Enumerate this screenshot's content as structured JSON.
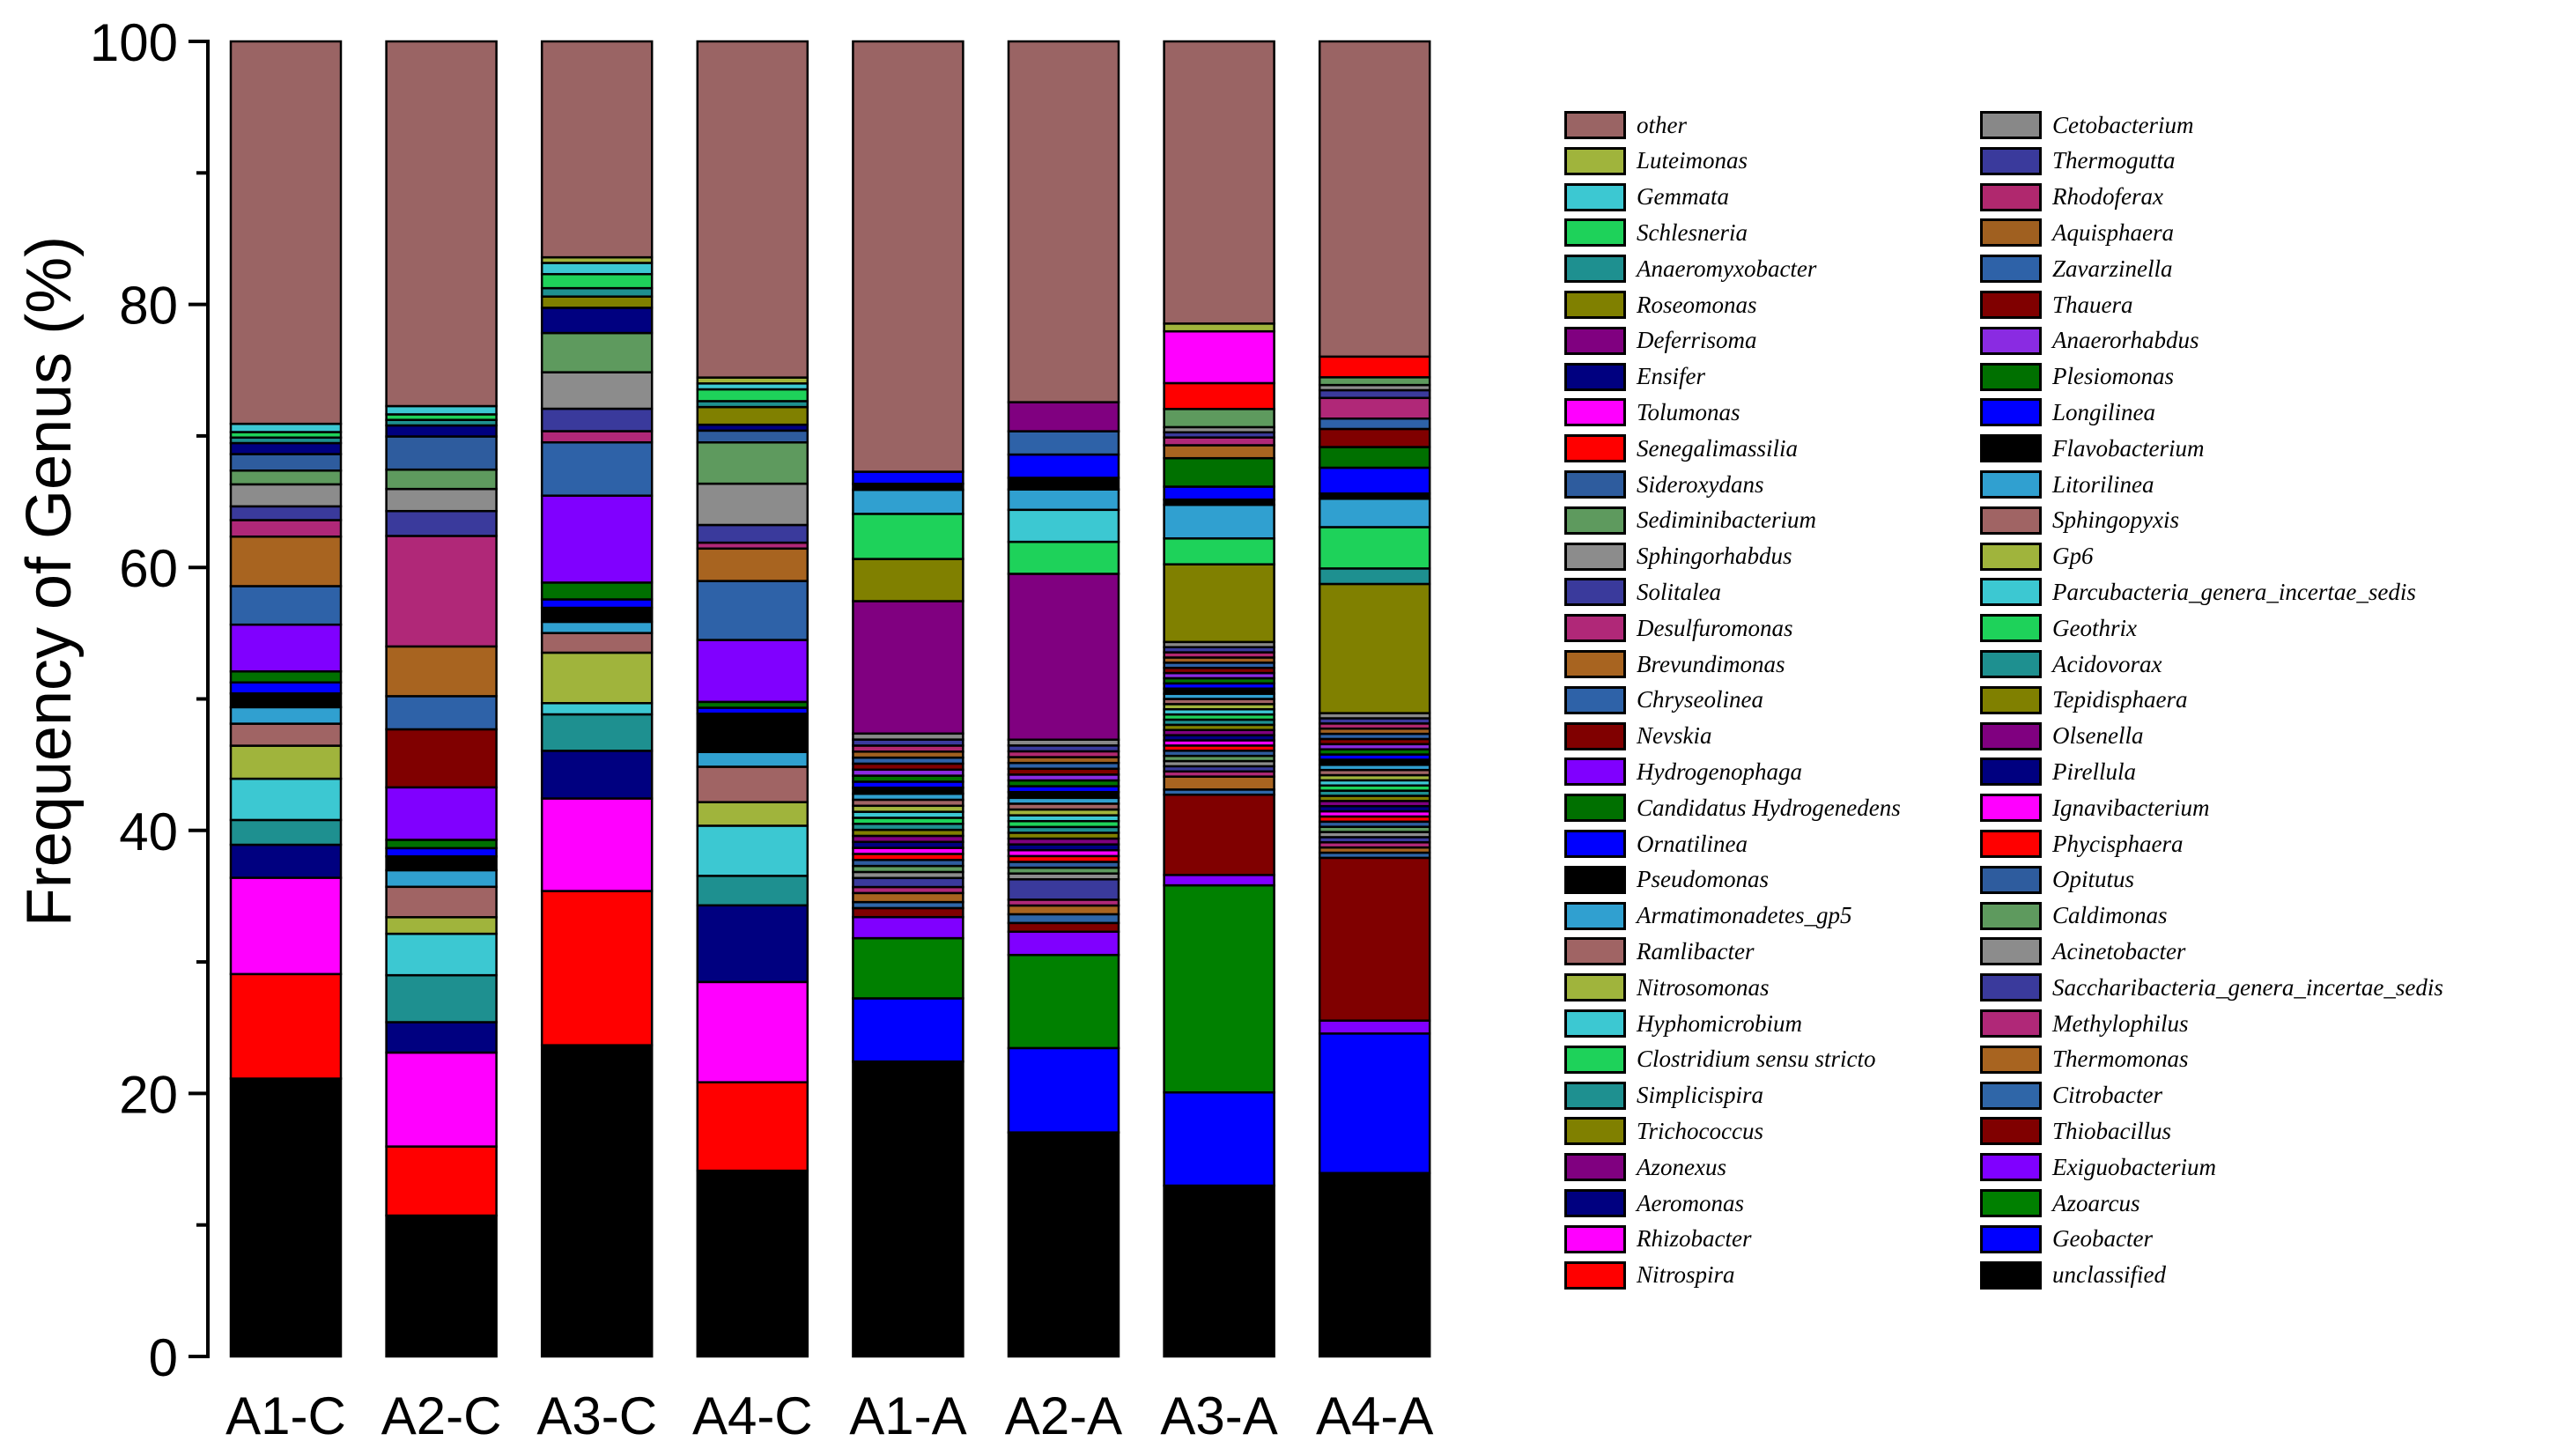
{
  "chart_data": {
    "type": "stacked-bar",
    "ylabel": "Frequency of Genus (%)",
    "ylim": [
      0,
      100
    ],
    "yticks": [
      0,
      20,
      40,
      60,
      80,
      100
    ],
    "categories": [
      "A1-C",
      "A2-C",
      "A3-C",
      "A4-C",
      "A1-A",
      "A2-A",
      "A3-A",
      "A4-A"
    ],
    "legend_placement": "right",
    "series": [
      {
        "name": "unclassified",
        "color": "#000000",
        "values": [
          20.2,
          10.2,
          22.2,
          12.6,
          19.6,
          15.4,
          13.2,
          14.2
        ]
      },
      {
        "name": "Geobacter",
        "color": "#0000ff",
        "values": [
          0,
          0,
          0,
          0,
          4.2,
          5.8,
          7.2,
          10.8
        ]
      },
      {
        "name": "Azoarcus",
        "color": "#008000",
        "values": [
          0,
          0,
          0,
          0,
          4.0,
          6.4,
          16.0,
          0
        ]
      },
      {
        "name": "Exiguobacterium",
        "color": "#8000ff",
        "values": [
          0,
          0,
          0,
          0,
          1.4,
          1.6,
          0.8,
          1.0
        ]
      },
      {
        "name": "Thiobacillus",
        "color": "#800000",
        "values": [
          0,
          0,
          0,
          0,
          0.6,
          0.6,
          6.2,
          12.6
        ]
      },
      {
        "name": "Citrobacter",
        "color": "#2f66a8",
        "values": [
          0,
          0,
          0,
          0,
          0.4,
          0.6,
          0.4,
          0.4
        ]
      },
      {
        "name": "Thermomonas",
        "color": "#a86420",
        "values": [
          0,
          0,
          0,
          0,
          0.6,
          0.6,
          1.0,
          0.4
        ]
      },
      {
        "name": "Methylophilus",
        "color": "#b02878",
        "values": [
          0,
          0,
          0,
          0,
          0.4,
          0.4,
          0.4,
          0.4
        ]
      },
      {
        "name": "Saccharibacteria_genera_incertae_sedis",
        "color": "#3a3a9c",
        "values": [
          0,
          0,
          0,
          0,
          0.6,
          1.4,
          0.4,
          0.4
        ]
      },
      {
        "name": "Acinetobacter",
        "color": "#8c8c8c",
        "values": [
          0,
          0,
          0,
          0,
          0.4,
          0.4,
          0.4,
          0.4
        ]
      },
      {
        "name": "Caldimonas",
        "color": "#5e9a5e",
        "values": [
          0,
          0,
          0,
          0,
          0.4,
          0.4,
          0.4,
          0.4
        ]
      },
      {
        "name": "Opitutus",
        "color": "#2e5c9e",
        "values": [
          0,
          0,
          0,
          0,
          0.4,
          0.4,
          0.4,
          0.4
        ]
      },
      {
        "name": "Phycisphaera",
        "color": "#ff0000",
        "values": [
          0,
          0,
          0,
          0,
          0.4,
          0.4,
          0.4,
          0.4
        ]
      },
      {
        "name": "Ignavibacterium",
        "color": "#ff00ff",
        "values": [
          0,
          0,
          0,
          0,
          0.4,
          0.4,
          0.4,
          0.4
        ]
      },
      {
        "name": "Pirellula",
        "color": "#000080",
        "values": [
          0,
          0,
          0,
          0,
          0.4,
          0.4,
          0.4,
          0.4
        ]
      },
      {
        "name": "Olsenella",
        "color": "#800080",
        "values": [
          0,
          0,
          0,
          0,
          0.4,
          0.4,
          0.4,
          0.4
        ]
      },
      {
        "name": "Tepidisphaera",
        "color": "#808000",
        "values": [
          0,
          0,
          0,
          0,
          0.4,
          0.4,
          0.4,
          0.4
        ]
      },
      {
        "name": "Acidovorax",
        "color": "#1e9090",
        "values": [
          0,
          0,
          0,
          0,
          0.4,
          0.4,
          0.4,
          0.4
        ]
      },
      {
        "name": "Geothrix",
        "color": "#1ed25a",
        "values": [
          0,
          0,
          0,
          0,
          0.4,
          0.4,
          0.4,
          0.4
        ]
      },
      {
        "name": "Parcubacteria_genera_incertae_sedis",
        "color": "#3cc8d2",
        "values": [
          0,
          0,
          0,
          0,
          0.4,
          0.4,
          0.4,
          0.4
        ]
      },
      {
        "name": "Gp6",
        "color": "#a0b43c",
        "values": [
          0,
          0,
          0,
          0,
          0.4,
          0.4,
          0.4,
          0.4
        ]
      },
      {
        "name": "Sphingopyxis",
        "color": "#a06464",
        "values": [
          0,
          0,
          0,
          0,
          0.4,
          0.4,
          0.4,
          0.4
        ]
      },
      {
        "name": "Litorilinea",
        "color": "#30a0d0",
        "values": [
          0,
          0,
          0,
          0,
          0.4,
          0.4,
          0.4,
          0.4
        ]
      },
      {
        "name": "Flavobacterium",
        "color": "#000000",
        "values": [
          0,
          0,
          0,
          0,
          0.4,
          0.4,
          0.4,
          0.4
        ]
      },
      {
        "name": "Longilinea",
        "color": "#0000ff",
        "values": [
          0,
          0,
          0,
          0,
          0.4,
          0.4,
          0.4,
          0.4
        ]
      },
      {
        "name": "Plesiomonas",
        "color": "#007000",
        "values": [
          0,
          0,
          0,
          0,
          0.4,
          0.4,
          0.4,
          0.4
        ]
      },
      {
        "name": "Anaerorhabdus",
        "color": "#8a2be2",
        "values": [
          0,
          0,
          0,
          0,
          0.4,
          0.4,
          0.4,
          0.4
        ]
      },
      {
        "name": "Thauera",
        "color": "#800000",
        "values": [
          0,
          0,
          0,
          0,
          0.4,
          0.4,
          0.4,
          0.4
        ]
      },
      {
        "name": "Zavarzinella",
        "color": "#2e62a8",
        "values": [
          0,
          0,
          0,
          0,
          0.4,
          0.4,
          0.4,
          0.4
        ]
      },
      {
        "name": "Aquisphaera",
        "color": "#a06020",
        "values": [
          0,
          0,
          0,
          0,
          0.4,
          0.4,
          0.4,
          0.4
        ]
      },
      {
        "name": "Rhodoferax",
        "color": "#b0286e",
        "values": [
          0,
          0,
          0,
          0,
          0.4,
          0.4,
          0.4,
          0.4
        ]
      },
      {
        "name": "Thermogutta",
        "color": "#3a3a9c",
        "values": [
          0,
          0,
          0,
          0,
          0.4,
          0.4,
          0.4,
          0.4
        ]
      },
      {
        "name": "Cetobacterium",
        "color": "#888888",
        "values": [
          0,
          0,
          0,
          0,
          0.4,
          0.4,
          0.4,
          0.4
        ]
      },
      {
        "name": "Nitrospira",
        "color": "#ff0000",
        "values": [
          7.6,
          5.0,
          11.0,
          6.0,
          0,
          0,
          0,
          0
        ]
      },
      {
        "name": "Rhizobacter",
        "color": "#ff00ff",
        "values": [
          7.0,
          6.8,
          6.6,
          6.8,
          0,
          0,
          0,
          0
        ]
      },
      {
        "name": "Aeromonas",
        "color": "#000080",
        "values": [
          2.4,
          2.2,
          3.4,
          5.2,
          0,
          0,
          0,
          0
        ]
      },
      {
        "name": "Azonexus",
        "color": "#800080",
        "values": [
          0,
          0,
          0,
          0,
          8.8,
          11.4,
          0,
          0
        ]
      },
      {
        "name": "Trichococcus",
        "color": "#808000",
        "values": [
          0,
          0,
          0,
          0,
          2.8,
          0,
          6.0,
          10.0
        ]
      },
      {
        "name": "Simplicispira",
        "color": "#1e9090",
        "values": [
          1.8,
          3.4,
          2.6,
          2.0,
          0,
          0,
          0,
          1.2
        ]
      },
      {
        "name": "Clostridium sensu stricto",
        "color": "#1ed25a",
        "values": [
          0,
          0,
          0,
          0,
          3.0,
          2.2,
          2.0,
          3.2
        ]
      },
      {
        "name": "Hyphomicrobium",
        "color": "#3cc8d2",
        "values": [
          3.0,
          3.0,
          0.8,
          3.4,
          0,
          2.2,
          0,
          0
        ]
      },
      {
        "name": "Nitrosomonas",
        "color": "#a0b43c",
        "values": [
          2.4,
          1.2,
          3.6,
          1.6,
          0,
          0,
          0,
          0
        ]
      },
      {
        "name": "Ramlibacter",
        "color": "#a06464",
        "values": [
          1.6,
          2.2,
          1.4,
          2.4,
          0,
          0,
          0,
          0
        ]
      },
      {
        "name": "Armatimonadetes_gp5",
        "color": "#30a0d0",
        "values": [
          1.2,
          1.2,
          0.8,
          1.0,
          1.6,
          1.4,
          2.6,
          2.2
        ]
      },
      {
        "name": "Pseudomonas",
        "color": "#000000",
        "values": [
          1.0,
          1.0,
          1.0,
          2.6,
          0.4,
          0.8,
          0.4,
          0.4
        ]
      },
      {
        "name": "Ornatilinea",
        "color": "#0000ff",
        "values": [
          0.8,
          0.6,
          0.6,
          0.4,
          0.8,
          1.6,
          1.0,
          2.0
        ]
      },
      {
        "name": "Candidatus Hydrogenedens",
        "color": "#007000",
        "values": [
          0.8,
          0.6,
          1.2,
          0.4,
          0,
          0,
          2.2,
          1.6
        ]
      },
      {
        "name": "Hydrogenophaga",
        "color": "#8000ff",
        "values": [
          3.4,
          3.8,
          6.2,
          4.2,
          0,
          0,
          0,
          0
        ]
      },
      {
        "name": "Nevskia",
        "color": "#800000",
        "values": [
          0,
          4.2,
          0,
          0,
          0,
          0,
          0,
          1.4
        ]
      },
      {
        "name": "Chryseolinea",
        "color": "#2e62a8",
        "values": [
          2.8,
          2.4,
          3.8,
          4.0,
          0,
          1.6,
          0,
          0.8
        ]
      },
      {
        "name": "Brevundimonas",
        "color": "#a86420",
        "values": [
          3.6,
          3.6,
          0,
          2.2,
          0,
          0,
          1.0,
          0
        ]
      },
      {
        "name": "Desulfuromonas",
        "color": "#b02878",
        "values": [
          1.2,
          8.0,
          0.8,
          0.4,
          0,
          0,
          0.6,
          1.6
        ]
      },
      {
        "name": "Solitalea",
        "color": "#3a3a9c",
        "values": [
          1.0,
          1.8,
          1.6,
          1.2,
          0,
          0,
          0.4,
          0.6
        ]
      },
      {
        "name": "Sphingorhabdus",
        "color": "#8c8c8c",
        "values": [
          1.6,
          1.6,
          2.6,
          2.8,
          0,
          0,
          0.4,
          0.4
        ]
      },
      {
        "name": "Sediminibacterium",
        "color": "#5e9a5e",
        "values": [
          1.0,
          1.4,
          2.8,
          2.8,
          0,
          0,
          1.4,
          0.6
        ]
      },
      {
        "name": "Sideroxydans",
        "color": "#2e5c9e",
        "values": [
          1.2,
          2.4,
          0,
          0.8,
          0,
          0,
          0,
          0
        ]
      },
      {
        "name": "Senegalimassilia",
        "color": "#ff0000",
        "values": [
          0,
          0,
          0,
          0,
          0,
          0,
          2.0,
          1.6
        ]
      },
      {
        "name": "Tolumonas",
        "color": "#ff00ff",
        "values": [
          0,
          0,
          0,
          0,
          0,
          0,
          4.0,
          0
        ]
      },
      {
        "name": "Ensifer",
        "color": "#000080",
        "values": [
          0.8,
          0.8,
          1.8,
          0.4,
          0,
          0,
          0,
          0
        ]
      },
      {
        "name": "Deferrisoma",
        "color": "#800080",
        "values": [
          0,
          0,
          0,
          0,
          0,
          2.0,
          0,
          0
        ]
      },
      {
        "name": "Roseomonas",
        "color": "#808000",
        "values": [
          0,
          0,
          0.8,
          1.2,
          0,
          0,
          0,
          0
        ]
      },
      {
        "name": "Anaeromyxobacter",
        "color": "#1e9090",
        "values": [
          0.4,
          0.4,
          0.6,
          0.4,
          0,
          0,
          0,
          0
        ]
      },
      {
        "name": "Schlesneria",
        "color": "#1ed25a",
        "values": [
          0.4,
          0.4,
          1.0,
          0.8,
          0,
          0,
          0,
          0
        ]
      },
      {
        "name": "Gemmata",
        "color": "#3cc8d2",
        "values": [
          0.6,
          0.6,
          0.8,
          0.4,
          0,
          0,
          0,
          0
        ]
      },
      {
        "name": "Luteimonas",
        "color": "#a0b43c",
        "values": [
          0,
          0,
          0.4,
          0.4,
          0,
          0,
          0.6,
          0
        ]
      },
      {
        "name": "other",
        "color": "#9a6464",
        "values": [
          27.8,
          26.4,
          15.4,
          22.8,
          28.6,
          24.8,
          21.8,
          24.4
        ]
      }
    ]
  }
}
